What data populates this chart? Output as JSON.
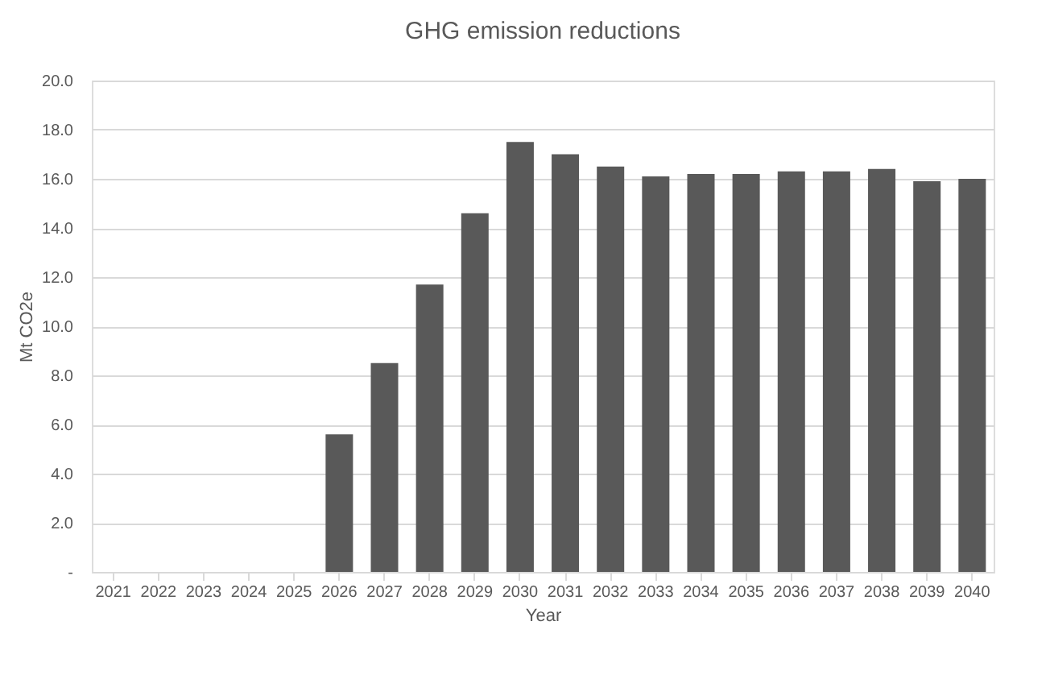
{
  "chart_data": {
    "type": "bar",
    "title": "GHG emission reductions",
    "xlabel": "Year",
    "ylabel": "Mt CO2e",
    "categories": [
      "2021",
      "2022",
      "2023",
      "2024",
      "2025",
      "2026",
      "2027",
      "2028",
      "2029",
      "2030",
      "2031",
      "2032",
      "2033",
      "2034",
      "2035",
      "2036",
      "2037",
      "2038",
      "2039",
      "2040"
    ],
    "values": [
      0,
      0,
      0,
      0,
      0,
      5.6,
      8.5,
      11.7,
      14.6,
      17.5,
      17.0,
      16.5,
      16.1,
      16.2,
      16.2,
      16.3,
      16.3,
      16.4,
      15.9,
      16.0
    ],
    "color": "#595959",
    "ylim": [
      0,
      20
    ],
    "yticks": [
      {
        "value": 0,
        "label": "-"
      },
      {
        "value": 2,
        "label": "2.0"
      },
      {
        "value": 4,
        "label": "4.0"
      },
      {
        "value": 6,
        "label": "6.0"
      },
      {
        "value": 8,
        "label": "8.0"
      },
      {
        "value": 10,
        "label": "10.0"
      },
      {
        "value": 12,
        "label": "12.0"
      },
      {
        "value": 14,
        "label": "14.0"
      },
      {
        "value": 16,
        "label": "16.0"
      },
      {
        "value": 18,
        "label": "18.0"
      },
      {
        "value": 20,
        "label": "20.0"
      }
    ],
    "grid": "y"
  }
}
